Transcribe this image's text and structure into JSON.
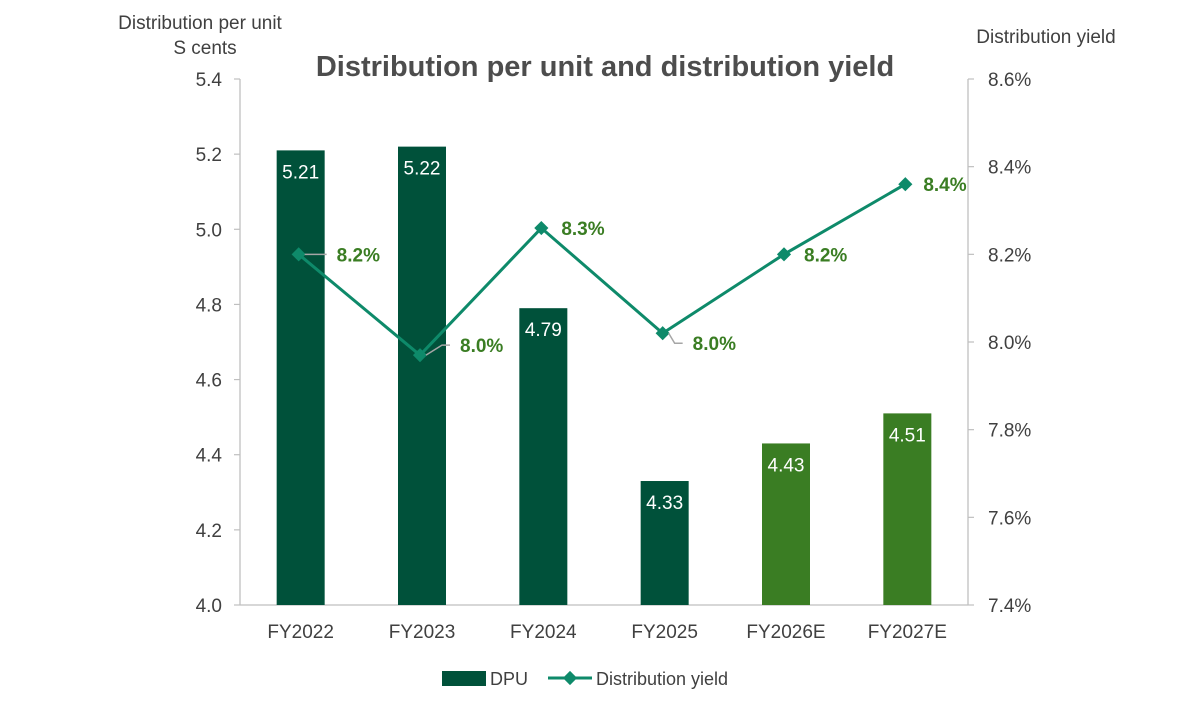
{
  "chart_data": {
    "type": "bar",
    "title": "Distribution per unit and distribution yield",
    "ylabel_line1": "Distribution per unit",
    "ylabel_line2": "S cents",
    "y2label": "Distribution yield",
    "categories": [
      "FY2022",
      "FY2023",
      "FY2024",
      "FY2025",
      "FY2026E",
      "FY2027E"
    ],
    "ylim": [
      4.0,
      5.4
    ],
    "yticks": [
      "4.0",
      "4.2",
      "4.4",
      "4.6",
      "4.8",
      "5.0",
      "5.2",
      "5.4"
    ],
    "y2lim": [
      7.4,
      8.6
    ],
    "y2ticks": [
      "7.4%",
      "7.6%",
      "7.8%",
      "8.0%",
      "8.2%",
      "8.4%",
      "8.6%"
    ],
    "series": [
      {
        "name": "DPU",
        "kind": "bar",
        "values": [
          5.21,
          5.22,
          4.79,
          4.33,
          4.43,
          4.51
        ],
        "labels": [
          "5.21",
          "5.22",
          "4.79",
          "4.33",
          "4.43",
          "4.51"
        ],
        "bar_colors": [
          "#00513A",
          "#00513A",
          "#00513A",
          "#00513A",
          "#3A7D23",
          "#3A7D23"
        ]
      },
      {
        "name": "Distribution yield",
        "kind": "line",
        "axis": "right",
        "values": [
          8.2,
          7.97,
          8.26,
          8.02,
          8.2,
          8.36
        ],
        "labels": [
          "8.2%",
          "8.0%",
          "8.3%",
          "8.0%",
          "8.2%",
          "8.4%"
        ],
        "color": "#0E8A6A"
      }
    ],
    "legend": [
      "DPU",
      "Distribution yield"
    ],
    "legend_position": "bottom",
    "colors": {
      "title": "#4D4D4D",
      "axis_text": "#404040",
      "axis_line": "#BFBFBF",
      "yield_label": "#3A7D23",
      "bar_label": "#ffffff",
      "legend_bar": "#00513A",
      "leader": "#A6A6A6"
    }
  }
}
